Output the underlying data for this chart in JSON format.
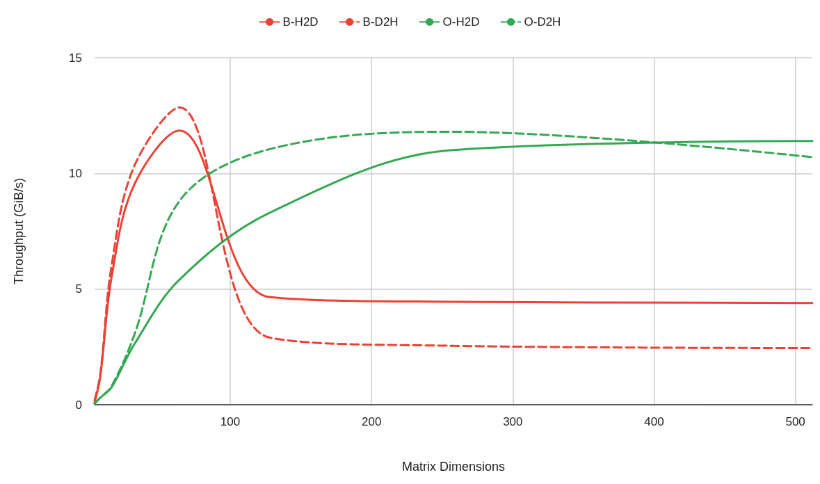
{
  "chart_data": {
    "type": "line",
    "xlabel": "Matrix Dimensions",
    "ylabel": "Throughput (GiB/s)",
    "x": [
      4,
      8,
      16,
      32,
      64,
      128,
      256,
      512
    ],
    "series": [
      {
        "name": "B-H2D",
        "color": "#ea4335",
        "line_style": "solid",
        "values": [
          0.1,
          1.2,
          5.5,
          9.5,
          11.85,
          4.65,
          4.45,
          4.4
        ]
      },
      {
        "name": "B-D2H",
        "color": "#ea4335",
        "line_style": "dashed",
        "values": [
          0.2,
          1.3,
          6.0,
          10.3,
          12.85,
          2.9,
          2.55,
          2.45
        ]
      },
      {
        "name": "O-H2D",
        "color": "#34a853",
        "line_style": "solid",
        "values": [
          0.05,
          0.3,
          0.75,
          2.6,
          5.4,
          8.3,
          11.0,
          11.4
        ]
      },
      {
        "name": "O-D2H",
        "color": "#34a853",
        "line_style": "dashed",
        "values": [
          0.05,
          0.3,
          0.8,
          3.0,
          8.8,
          11.05,
          11.8,
          10.7
        ]
      }
    ],
    "xlim": [
      4,
      512
    ],
    "xticks": [
      100,
      200,
      300,
      400,
      500
    ],
    "ylim": [
      0,
      15
    ],
    "yticks": [
      0,
      5,
      10,
      15
    ],
    "grid": true,
    "legend": "top",
    "marker": "none"
  }
}
